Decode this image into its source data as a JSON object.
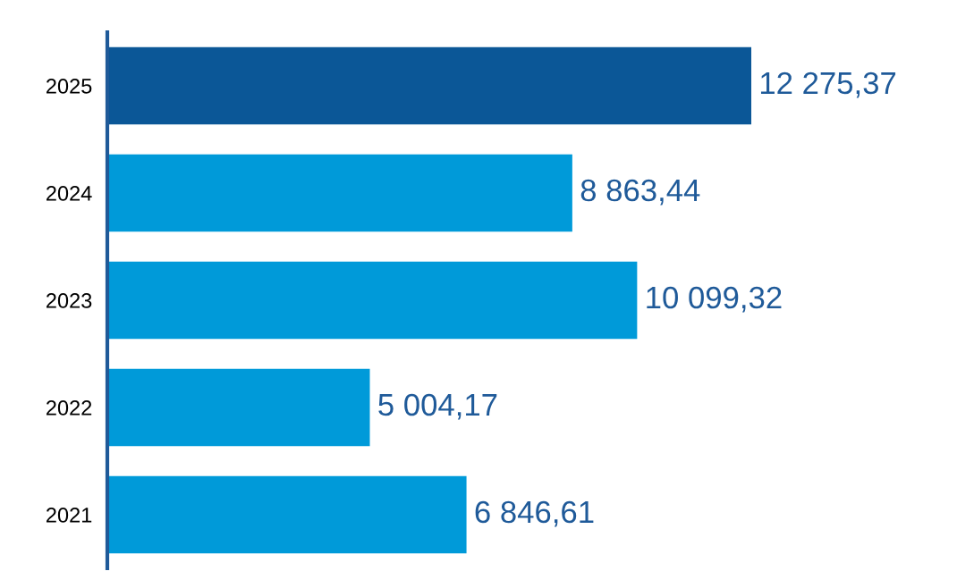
{
  "chart_data": {
    "type": "bar",
    "orientation": "horizontal",
    "categories": [
      "2025",
      "2024",
      "2023",
      "2022",
      "2021"
    ],
    "values": [
      12275.37,
      8863.44,
      10099.32,
      5004.17,
      6846.61
    ],
    "colors": [
      "#0b5797",
      "#009ad9",
      "#009ad9",
      "#009ad9",
      "#009ad9"
    ],
    "value_labels": [
      "12 275,37",
      "8 863,44",
      "10 099,32",
      "5 004,17",
      "6 846,61"
    ],
    "grid": false,
    "legend": false
  }
}
